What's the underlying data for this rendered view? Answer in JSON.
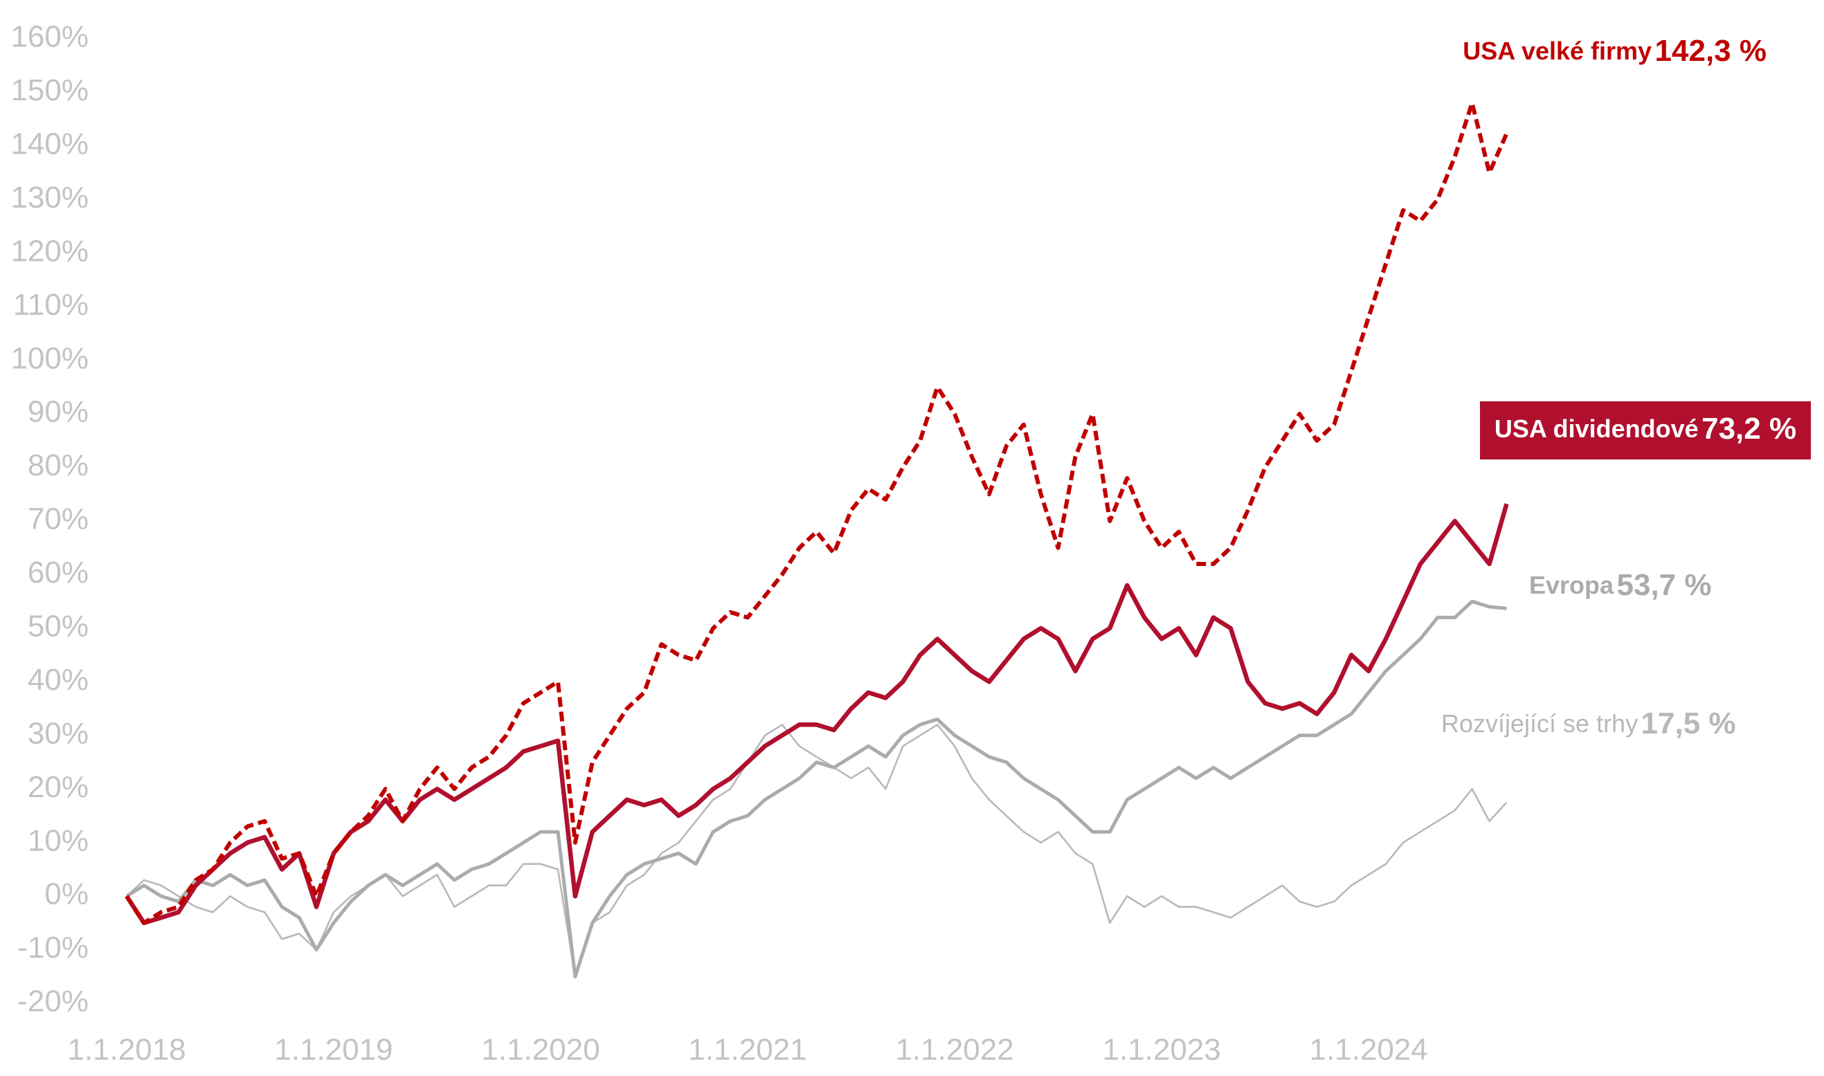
{
  "chart_data": {
    "type": "line",
    "x": [
      "1.1.2018",
      "1.2.2018",
      "1.3.2018",
      "1.4.2018",
      "1.5.2018",
      "1.6.2018",
      "1.7.2018",
      "1.8.2018",
      "1.9.2018",
      "1.10.2018",
      "1.11.2018",
      "1.12.2018",
      "1.1.2019",
      "1.2.2019",
      "1.3.2019",
      "1.4.2019",
      "1.5.2019",
      "1.6.2019",
      "1.7.2019",
      "1.8.2019",
      "1.9.2019",
      "1.10.2019",
      "1.11.2019",
      "1.12.2019",
      "1.1.2020",
      "1.2.2020",
      "1.3.2020",
      "1.4.2020",
      "1.5.2020",
      "1.6.2020",
      "1.7.2020",
      "1.8.2020",
      "1.9.2020",
      "1.10.2020",
      "1.11.2020",
      "1.12.2020",
      "1.1.2021",
      "1.2.2021",
      "1.3.2021",
      "1.4.2021",
      "1.5.2021",
      "1.6.2021",
      "1.7.2021",
      "1.8.2021",
      "1.9.2021",
      "1.10.2021",
      "1.11.2021",
      "1.12.2021",
      "1.1.2022",
      "1.2.2022",
      "1.3.2022",
      "1.4.2022",
      "1.5.2022",
      "1.6.2022",
      "1.7.2022",
      "1.8.2022",
      "1.9.2022",
      "1.10.2022",
      "1.11.2022",
      "1.12.2022",
      "1.1.2023",
      "1.2.2023",
      "1.3.2023",
      "1.4.2023",
      "1.5.2023",
      "1.6.2023",
      "1.7.2023",
      "1.8.2023",
      "1.9.2023",
      "1.10.2023",
      "1.11.2023",
      "1.12.2023",
      "1.1.2024",
      "1.2.2024",
      "1.3.2024",
      "1.4.2024",
      "1.5.2024",
      "1.6.2024",
      "1.7.2024",
      "1.8.2024",
      "1.9.2024"
    ],
    "xlim": [
      "1.1.2018",
      "1.3.2026"
    ],
    "xticks": [
      "1.1.2018",
      "1.1.2019",
      "1.1.2020",
      "1.1.2021",
      "1.1.2022",
      "1.1.2023",
      "1.1.2024"
    ],
    "ylim": [
      -20,
      160
    ],
    "yticks": [
      {
        "value": -20,
        "label": "-20%"
      },
      {
        "value": -10,
        "label": "-10%"
      },
      {
        "value": 0,
        "label": "0%"
      },
      {
        "value": 10,
        "label": "10%"
      },
      {
        "value": 20,
        "label": "20%"
      },
      {
        "value": 30,
        "label": "30%"
      },
      {
        "value": 40,
        "label": "40%"
      },
      {
        "value": 50,
        "label": "50%"
      },
      {
        "value": 60,
        "label": "60%"
      },
      {
        "value": 70,
        "label": "70%"
      },
      {
        "value": 80,
        "label": "80%"
      },
      {
        "value": 90,
        "label": "90%"
      },
      {
        "value": 100,
        "label": "100%"
      },
      {
        "value": 110,
        "label": "110%"
      },
      {
        "value": 120,
        "label": "120%"
      },
      {
        "value": 130,
        "label": "130%"
      },
      {
        "value": 140,
        "label": "140%"
      },
      {
        "value": 150,
        "label": "150%"
      },
      {
        "value": 160,
        "label": "160%"
      }
    ],
    "grid": false,
    "series": [
      {
        "name": "USA velké firmy",
        "color": "#c00000",
        "dashed": true,
        "label_box": false,
        "values": [
          0,
          -5,
          -3,
          -2,
          3,
          5,
          10,
          13,
          14,
          7,
          8,
          0,
          8,
          12,
          15,
          20,
          14,
          20,
          24,
          20,
          24,
          26,
          30,
          36,
          38,
          40,
          10,
          25,
          30,
          35,
          38,
          47,
          45,
          44,
          50,
          53,
          52,
          56,
          60,
          65,
          68,
          64,
          72,
          76,
          74,
          80,
          85,
          95,
          90,
          82,
          75,
          84,
          88,
          75,
          65,
          82,
          90,
          70,
          78,
          70,
          65,
          68,
          62,
          62,
          65,
          72,
          80,
          85,
          90,
          85,
          88,
          98,
          108,
          118,
          128,
          126,
          130,
          138,
          148,
          135,
          142.3
        ],
        "value_labels": [
          null,
          null,
          null,
          null,
          null,
          null,
          null,
          null,
          null,
          null,
          null,
          null,
          null,
          null,
          null,
          null,
          null,
          null,
          null,
          null,
          null,
          null,
          null,
          null,
          null,
          null,
          null,
          null,
          null,
          null,
          null,
          null,
          null,
          null,
          null,
          null,
          null,
          null,
          null,
          null,
          null,
          null,
          null,
          null,
          null,
          null,
          null,
          null,
          null,
          null,
          null,
          null,
          null,
          null,
          null,
          null,
          null,
          null,
          null,
          null,
          null,
          null,
          null,
          null,
          null,
          null,
          null,
          null,
          null,
          null,
          null,
          null,
          null,
          null,
          null,
          null,
          null,
          null,
          null,
          null,
          "142,3 %"
        ]
      },
      {
        "name": "USA dividendové",
        "color": "#b0102e",
        "dashed": false,
        "label_box": true,
        "values": [
          0,
          -5,
          -4,
          -3,
          2,
          5,
          8,
          10,
          11,
          5,
          8,
          -2,
          8,
          12,
          14,
          18,
          14,
          18,
          20,
          18,
          20,
          22,
          24,
          27,
          28,
          29,
          0,
          12,
          15,
          18,
          17,
          18,
          15,
          17,
          20,
          22,
          25,
          28,
          30,
          32,
          32,
          31,
          35,
          38,
          37,
          40,
          45,
          48,
          45,
          42,
          40,
          44,
          48,
          50,
          48,
          42,
          48,
          50,
          58,
          52,
          48,
          50,
          45,
          52,
          50,
          40,
          36,
          35,
          36,
          34,
          38,
          45,
          42,
          48,
          55,
          62,
          66,
          70,
          66,
          62,
          73.2
        ],
        "value_labels": [
          null,
          null,
          null,
          null,
          null,
          null,
          null,
          null,
          null,
          null,
          null,
          null,
          null,
          null,
          null,
          null,
          null,
          null,
          null,
          null,
          null,
          null,
          null,
          null,
          null,
          null,
          null,
          null,
          null,
          null,
          null,
          null,
          null,
          null,
          null,
          null,
          null,
          null,
          null,
          null,
          null,
          null,
          null,
          null,
          null,
          null,
          null,
          null,
          null,
          null,
          null,
          null,
          null,
          null,
          null,
          null,
          null,
          null,
          null,
          null,
          null,
          null,
          null,
          null,
          null,
          null,
          null,
          null,
          null,
          null,
          null,
          null,
          null,
          null,
          null,
          null,
          null,
          null,
          null,
          null,
          "73,2 %"
        ]
      },
      {
        "name": "Evropa",
        "color": "#ababab",
        "dashed": false,
        "label_box": false,
        "values": [
          0,
          2,
          0,
          -1,
          3,
          2,
          4,
          2,
          3,
          -2,
          -4,
          -10,
          -5,
          -1,
          2,
          4,
          2,
          4,
          6,
          3,
          5,
          6,
          8,
          10,
          12,
          12,
          -15,
          -5,
          0,
          4,
          6,
          7,
          8,
          6,
          12,
          14,
          15,
          18,
          20,
          22,
          25,
          24,
          26,
          28,
          26,
          30,
          32,
          33,
          30,
          28,
          26,
          25,
          22,
          20,
          18,
          15,
          12,
          12,
          18,
          20,
          22,
          24,
          22,
          24,
          22,
          24,
          26,
          28,
          30,
          30,
          32,
          34,
          38,
          42,
          45,
          48,
          52,
          52,
          55,
          54,
          53.7
        ],
        "value_labels": [
          null,
          null,
          null,
          null,
          null,
          null,
          null,
          null,
          null,
          null,
          null,
          null,
          null,
          null,
          null,
          null,
          null,
          null,
          null,
          null,
          null,
          null,
          null,
          null,
          null,
          null,
          null,
          null,
          null,
          null,
          null,
          null,
          null,
          null,
          null,
          null,
          null,
          null,
          null,
          null,
          null,
          null,
          null,
          null,
          null,
          null,
          null,
          null,
          null,
          null,
          null,
          null,
          null,
          null,
          null,
          null,
          null,
          null,
          null,
          null,
          null,
          null,
          null,
          null,
          null,
          null,
          null,
          null,
          null,
          null,
          null,
          null,
          null,
          null,
          null,
          null,
          null,
          null,
          null,
          null,
          "53,7 %"
        ]
      },
      {
        "name": "Rozvíjející se trhy",
        "color": "#b8b8b8",
        "dashed": false,
        "label_box": false,
        "values": [
          0,
          3,
          2,
          0,
          -2,
          -3,
          0,
          -2,
          -3,
          -8,
          -7,
          -10,
          -3,
          0,
          2,
          4,
          0,
          2,
          4,
          -2,
          0,
          2,
          2,
          6,
          6,
          5,
          -15,
          -5,
          -3,
          2,
          4,
          8,
          10,
          14,
          18,
          20,
          25,
          30,
          32,
          28,
          26,
          24,
          22,
          24,
          20,
          28,
          30,
          32,
          28,
          22,
          18,
          15,
          12,
          10,
          12,
          8,
          6,
          -5,
          0,
          -2,
          0,
          -2,
          -2,
          -3,
          -4,
          -2,
          0,
          2,
          -1,
          -2,
          -1,
          2,
          4,
          6,
          10,
          12,
          14,
          16,
          20,
          14,
          17.5
        ],
        "value_labels": [
          null,
          null,
          null,
          null,
          null,
          null,
          null,
          null,
          null,
          null,
          null,
          null,
          null,
          null,
          null,
          null,
          null,
          null,
          null,
          null,
          null,
          null,
          null,
          null,
          null,
          null,
          null,
          null,
          null,
          null,
          null,
          null,
          null,
          null,
          null,
          null,
          null,
          null,
          null,
          null,
          null,
          null,
          null,
          null,
          null,
          null,
          null,
          null,
          null,
          null,
          null,
          null,
          null,
          null,
          null,
          null,
          null,
          null,
          null,
          null,
          null,
          null,
          null,
          null,
          null,
          null,
          null,
          null,
          null,
          null,
          null,
          null,
          null,
          null,
          null,
          null,
          null,
          null,
          null,
          null,
          "17,5 %"
        ]
      }
    ]
  }
}
